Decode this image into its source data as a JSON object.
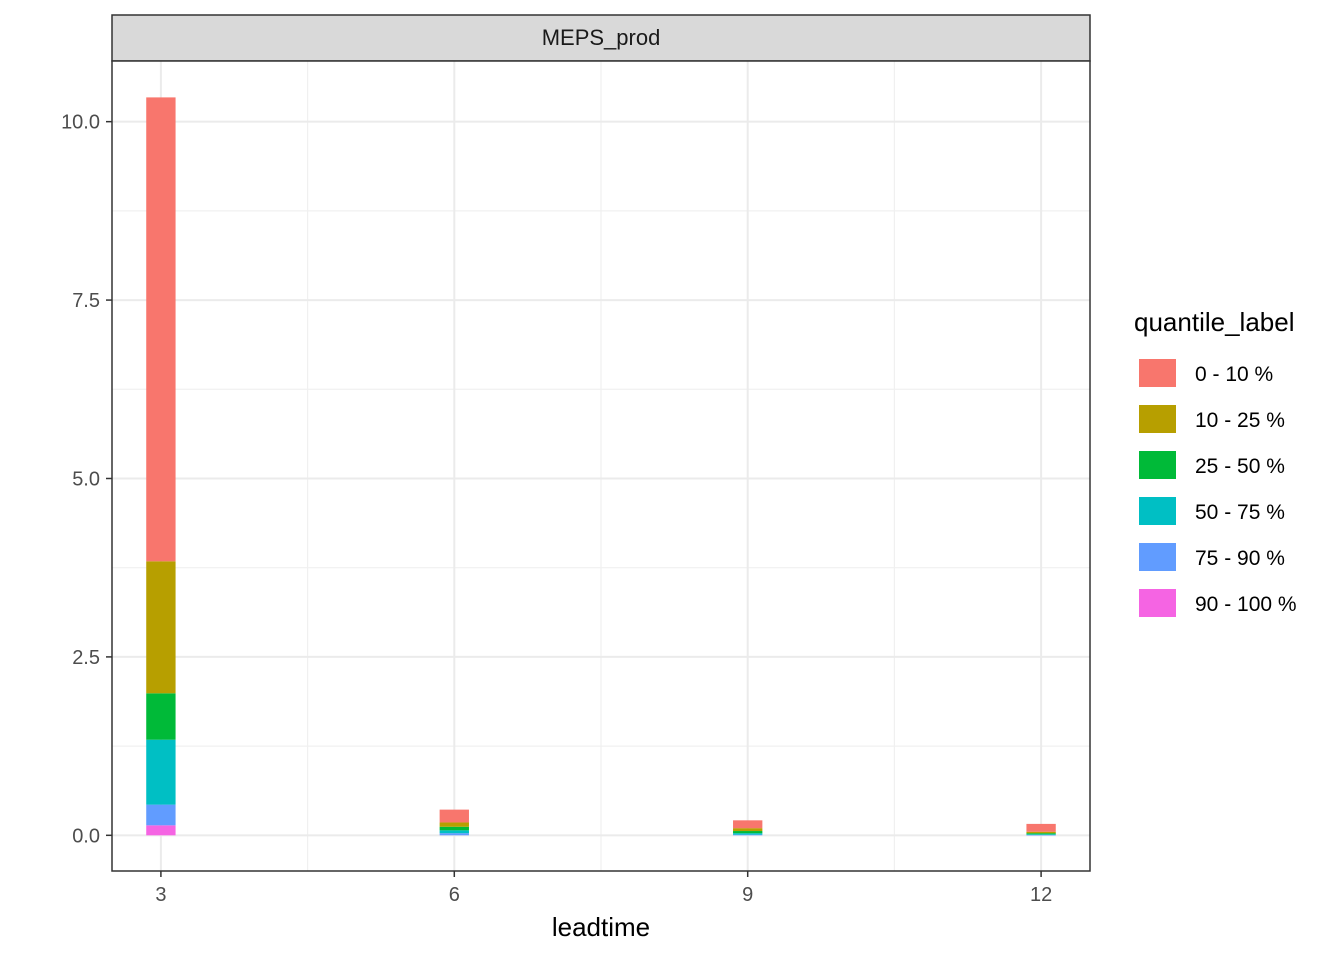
{
  "chart_data": {
    "type": "bar",
    "stacked": true,
    "facet_label": "MEPS_prod",
    "xlabel": "leadtime",
    "ylabel": "",
    "x": [
      3,
      6,
      9,
      12
    ],
    "x_ticks": [
      "3",
      "6",
      "9",
      "12"
    ],
    "y_ticks": [
      "0.0",
      "2.5",
      "5.0",
      "7.5",
      "10.0"
    ],
    "y_tick_values": [
      0,
      2.5,
      5,
      7.5,
      10
    ],
    "xlim": [
      2.5,
      12.5
    ],
    "ylim": [
      -0.5,
      10.85
    ],
    "grid": true,
    "legend": {
      "title": "quantile_label",
      "position": "right"
    },
    "series": [
      {
        "name": "90 - 100 %",
        "color": "#F564E3",
        "values": [
          0.14,
          0.0,
          0.0,
          0.0
        ]
      },
      {
        "name": "75 - 90 %",
        "color": "#619CFF",
        "values": [
          0.29,
          0.03,
          0.01,
          0.005
        ]
      },
      {
        "name": "50 - 75 %",
        "color": "#00BFC4",
        "values": [
          0.91,
          0.04,
          0.02,
          0.01
        ]
      },
      {
        "name": "25 - 50 %",
        "color": "#00BA38",
        "values": [
          0.65,
          0.05,
          0.03,
          0.015
        ]
      },
      {
        "name": "10 - 25 %",
        "color": "#B79F00",
        "values": [
          1.85,
          0.06,
          0.04,
          0.02
        ]
      },
      {
        "name": "0 - 10 %",
        "color": "#F8766D",
        "values": [
          6.5,
          0.18,
          0.11,
          0.11
        ]
      }
    ]
  }
}
